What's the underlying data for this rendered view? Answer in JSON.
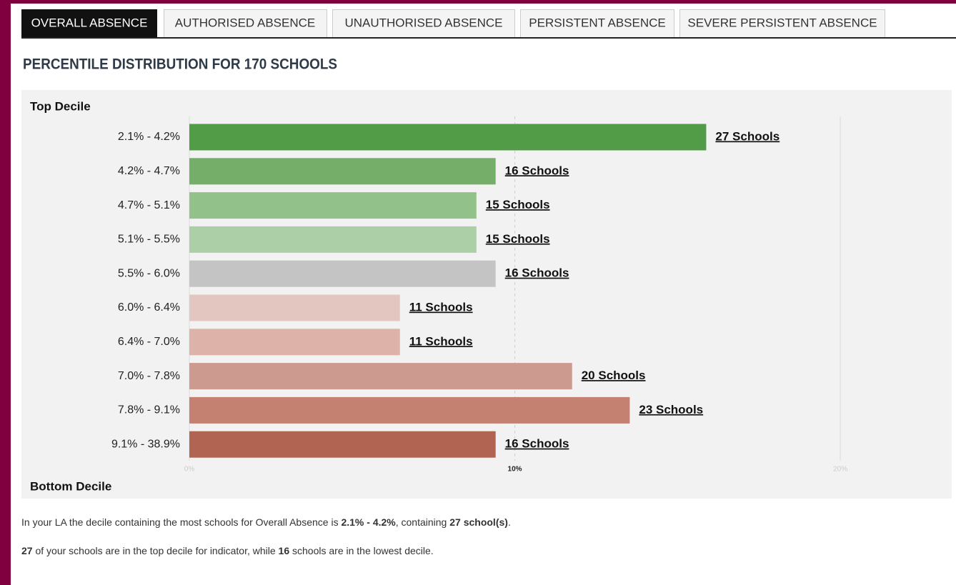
{
  "tabs": [
    "OVERALL ABSENCE",
    "AUTHORISED ABSENCE",
    "UNAUTHORISED ABSENCE",
    "PERSISTENT ABSENCE",
    "SEVERE PERSISTENT ABSENCE"
  ],
  "chart_data": {
    "type": "bar",
    "orientation": "horizontal",
    "title": "PERCENTILE DISTRIBUTION FOR 170 SCHOOLS",
    "top_label": "Top Decile",
    "bottom_label": "Bottom Decile",
    "categories": [
      "2.1% - 4.2%",
      "4.2% - 4.7%",
      "4.7% - 5.1%",
      "5.1% - 5.5%",
      "5.5% - 6.0%",
      "6.0% - 6.4%",
      "6.4% - 7.0%",
      "7.0% - 7.8%",
      "7.8% - 9.1%",
      "9.1% - 38.9%"
    ],
    "values": [
      15.88,
      9.41,
      8.82,
      8.82,
      9.41,
      6.47,
      6.47,
      11.76,
      13.53,
      9.41
    ],
    "value_labels": [
      "27 Schools",
      "16 Schools",
      "15 Schools",
      "15 Schools",
      "16 Schools",
      "11 Schools",
      "11 Schools",
      "20 Schools",
      "23 Schools",
      "16 Schools"
    ],
    "colors": [
      "#529b47",
      "#75ae69",
      "#93c18a",
      "#adcfa7",
      "#c4c4c4",
      "#e4c6c0",
      "#dcb2a9",
      "#cd9a8f",
      "#c48172",
      "#b26452"
    ],
    "xlim": [
      0,
      23.4
    ],
    "xticks": [
      {
        "value": 0,
        "label": "0%"
      },
      {
        "value": 10,
        "label": "10%"
      },
      {
        "value": 20,
        "label": "20%"
      }
    ],
    "grid": true
  },
  "summary": [
    [
      "In your LA the decile containing the most schools for Overall Absence is ",
      "2.1% - 4.2%",
      ", containing ",
      "27 school(s)",
      "."
    ],
    [
      "27",
      " of your schools are in the top decile for indicator, while ",
      "16",
      " schools are in the lowest decile."
    ]
  ]
}
